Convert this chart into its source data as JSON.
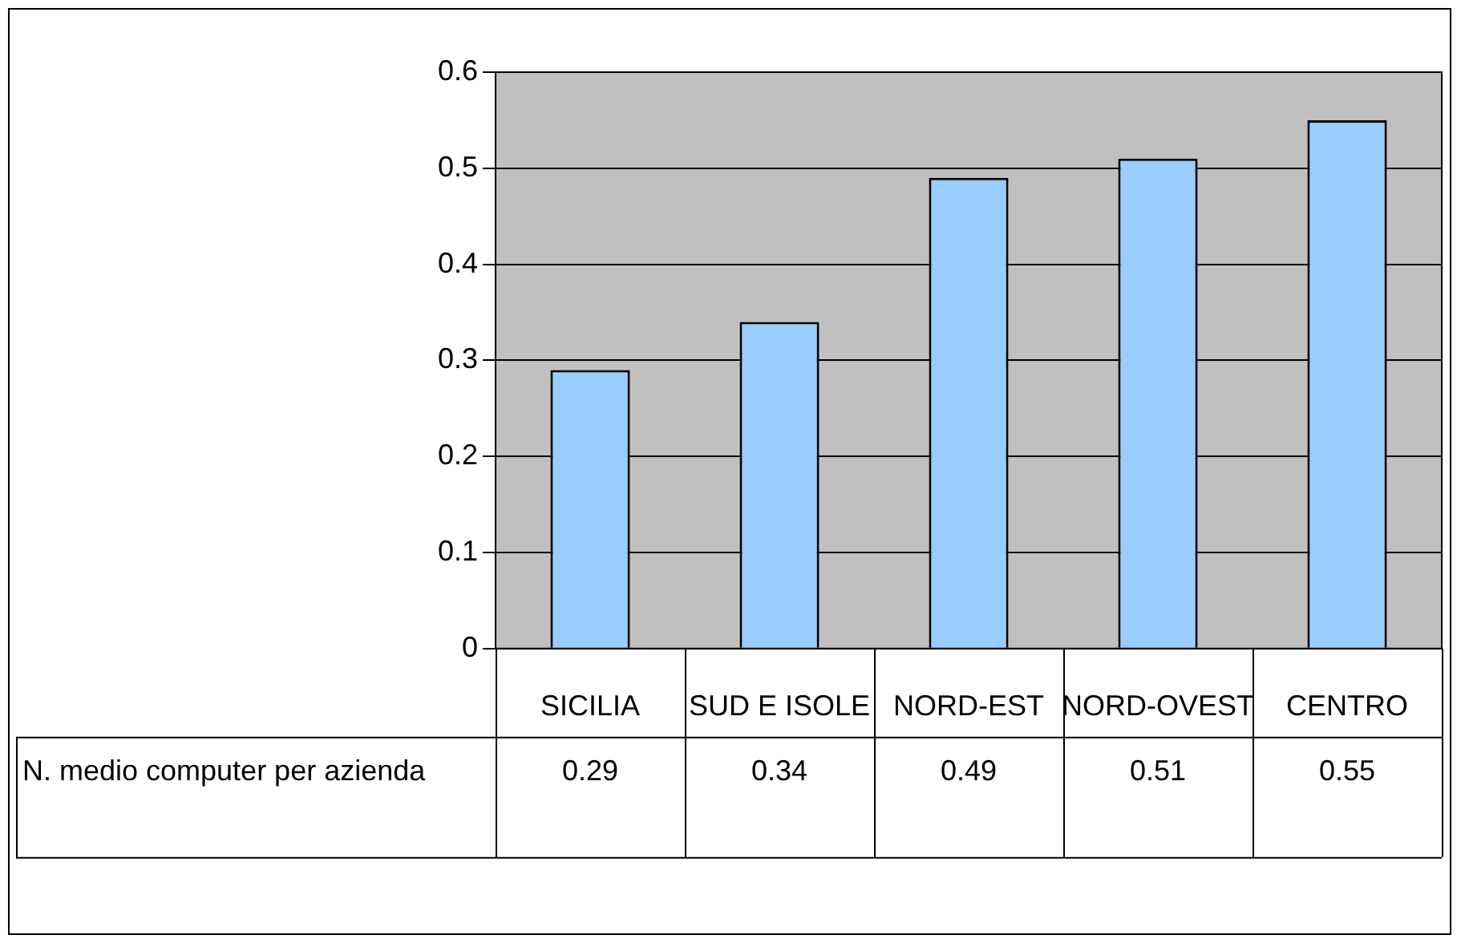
{
  "chart_data": {
    "type": "bar",
    "categories": [
      "SICILIA",
      "SUD E ISOLE",
      "NORD-EST",
      "NORD-OVEST",
      "CENTRO"
    ],
    "series": [
      {
        "name": "N. medio computer per azienda",
        "color": "#99ccff",
        "values": [
          0.29,
          0.34,
          0.49,
          0.51,
          0.55
        ]
      }
    ],
    "ylim": [
      0,
      0.6
    ],
    "yticks": [
      0,
      0.1,
      0.2,
      0.3,
      0.4,
      0.5,
      0.6
    ],
    "grid": "y",
    "legend": false,
    "data_labels": true
  }
}
